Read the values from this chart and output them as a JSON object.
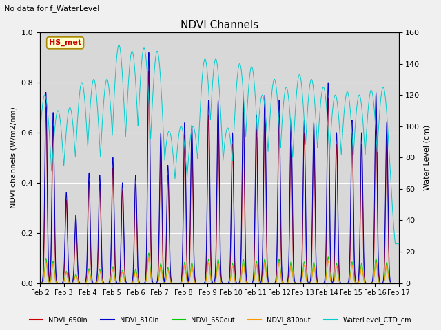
{
  "title": "NDVI Channels",
  "subtitle": "No data for f_WaterLevel",
  "ylabel_left": "NDVI channels (W/m2/nm)",
  "ylabel_right": "Water Level (cm)",
  "ylim_left": [
    0.0,
    1.0
  ],
  "ylim_right": [
    0,
    160
  ],
  "annotation": "HS_met",
  "legend_labels": [
    "NDVI_650in",
    "NDVI_810in",
    "NDVI_650out",
    "NDVI_810out",
    "WaterLevel_CTD_cm"
  ],
  "legend_colors": [
    "#cc0000",
    "#0000cc",
    "#00cc00",
    "#ff9900",
    "#00cccc"
  ],
  "plot_bg": "#d8d8d8",
  "fig_bg": "#f0f0f0",
  "grid_color": "#ffffff",
  "figsize": [
    6.4,
    4.8
  ],
  "dpi": 100
}
